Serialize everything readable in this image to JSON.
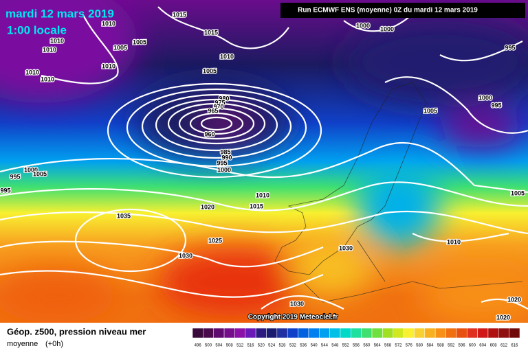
{
  "header": {
    "date": "mardi 12 mars 2019",
    "time": "1:00 locale",
    "run": "Run ECMWF ENS (moyenne) 0Z du mardi 12 mars 2019"
  },
  "isobar_labels": [
    1015,
    1010,
    1010,
    1010,
    1005,
    1005,
    1010,
    1010,
    1010,
    1015,
    1010,
    1005,
    980,
    975,
    970,
    965,
    960,
    985,
    990,
    995,
    1000,
    1000,
    1005,
    995,
    995,
    1010,
    1015,
    1020,
    1035,
    1025,
    1030,
    1030,
    1030,
    1000,
    1000,
    995,
    1005,
    1000,
    995,
    1005,
    1010,
    1020,
    1020
  ],
  "copyright": "Copyright 2019 Meteociel.fr",
  "legend": {
    "title": "Géop. z500, pression niveau mer",
    "subtitle": "moyenne",
    "lead": "(+0h)",
    "scale": [
      {
        "value": 496,
        "color": "#3a0a3a"
      },
      {
        "value": 500,
        "color": "#4b0a4b"
      },
      {
        "value": 504,
        "color": "#5e0a6e"
      },
      {
        "value": 508,
        "color": "#740e8a"
      },
      {
        "value": 512,
        "color": "#8a10a8"
      },
      {
        "value": 516,
        "color": "#6a18b8"
      },
      {
        "value": 520,
        "color": "#2c1a80"
      },
      {
        "value": 524,
        "color": "#1a1a70"
      },
      {
        "value": 528,
        "color": "#2030a0"
      },
      {
        "value": 532,
        "color": "#1040c8"
      },
      {
        "value": 536,
        "color": "#0060e0"
      },
      {
        "value": 540,
        "color": "#0080f0"
      },
      {
        "value": 544,
        "color": "#00a0f0"
      },
      {
        "value": 548,
        "color": "#00c0e8"
      },
      {
        "value": 552,
        "color": "#00d8c8"
      },
      {
        "value": 556,
        "color": "#20e0a0"
      },
      {
        "value": 560,
        "color": "#40e070"
      },
      {
        "value": 564,
        "color": "#70e040"
      },
      {
        "value": 568,
        "color": "#a0e020"
      },
      {
        "value": 572,
        "color": "#d0e820"
      },
      {
        "value": 576,
        "color": "#f8f030"
      },
      {
        "value": 580,
        "color": "#f8d030"
      },
      {
        "value": 584,
        "color": "#f8b020"
      },
      {
        "value": 588,
        "color": "#f89018"
      },
      {
        "value": 592,
        "color": "#f07010"
      },
      {
        "value": 596,
        "color": "#e85010"
      },
      {
        "value": 600,
        "color": "#e03020"
      },
      {
        "value": 604,
        "color": "#d01818"
      },
      {
        "value": 608,
        "color": "#b01010"
      },
      {
        "value": 612,
        "color": "#901010"
      },
      {
        "value": 616,
        "color": "#700a0a"
      }
    ]
  }
}
